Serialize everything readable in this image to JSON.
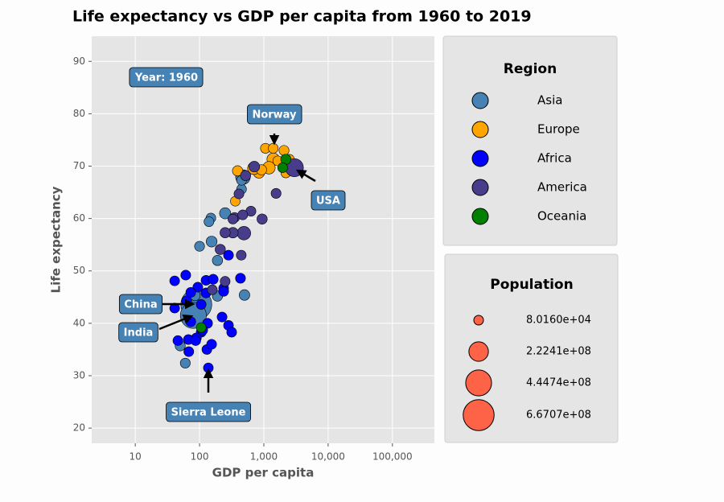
{
  "chart_data": {
    "type": "scatter",
    "title": "Life expectancy vs GDP per capita from 1960 to 2019",
    "x_label": "GDP per capita",
    "y_label": "Life expectancy",
    "x_scale": "log",
    "grid": true,
    "xlim": [
      2.1,
      450000
    ],
    "ylim": [
      17.1,
      94.8
    ],
    "xticks": [
      10,
      100,
      {
        "value": 1000,
        "label": "1,000"
      },
      {
        "value": 10000,
        "label": "10,000"
      },
      {
        "value": 100000,
        "label": "100,000"
      }
    ],
    "yticks": [
      20,
      30,
      40,
      50,
      60,
      70,
      80,
      90
    ],
    "year_label": "Year: 1960",
    "annotations": [
      "Norway",
      "USA",
      "China",
      "India",
      "Sierra Leone"
    ],
    "legend_title": "Region",
    "series": [
      {
        "name": "Asia",
        "color": "#4682b4",
        "x": [
          89,
          80,
          473,
          100,
          154,
          250,
          450,
          450,
          500,
          190,
          190,
          60,
          50,
          150,
          85,
          140
        ],
        "values": [
          43.6,
          41.5,
          67.9,
          54.7,
          55.6,
          61.0,
          65.6,
          67.3,
          45.4,
          52.0,
          45.2,
          32.4,
          35.7,
          60.1,
          45.3,
          59.4
        ],
        "sizes": [
          667070000,
          450000000,
          93000000,
          5000000,
          20000000,
          25000000,
          2000000,
          3000000,
          15000000,
          10000000,
          10000000,
          5000000,
          8000000,
          2000000,
          10000000,
          3000000
        ]
      },
      {
        "name": "Europe",
        "color": "#ffa500",
        "x": [
          1060,
          1400,
          2060,
          1400,
          840,
          700,
          390,
          360,
          1200,
          2200,
          2500,
          920,
          1650
        ],
        "values": [
          73.4,
          73.4,
          73.0,
          71.3,
          68.8,
          69.6,
          69.1,
          63.3,
          69.7,
          68.7,
          71.3,
          69.3,
          71.0
        ],
        "sizes": [
          5000000,
          4000000,
          5000000,
          50000000,
          30000000,
          50000000,
          10000000,
          2000000,
          50000000,
          2000000,
          3000000,
          10000000,
          3000000
        ]
      },
      {
        "name": "Africa",
        "color": "#0000ff",
        "x": [
          137,
          41,
          61,
          41,
          63,
          94,
          126,
          163,
          126,
          237,
          237,
          282,
          106,
          73,
          133,
          224,
          282,
          316,
          106,
          89,
          67,
          46,
          68,
          130,
          154,
          433,
          112,
          87,
          73
        ],
        "values": [
          31.5,
          48.1,
          49.2,
          42.9,
          44.3,
          46.9,
          48.2,
          48.4,
          45.8,
          46.7,
          46.1,
          53.0,
          43.6,
          40.3,
          40.0,
          41.2,
          39.6,
          38.3,
          38.3,
          37.2,
          36.9,
          36.7,
          34.6,
          35.0,
          36.0,
          48.6,
          38.7,
          36.7,
          45.9
        ],
        "sizes": [
          2300000,
          3000000,
          4000000,
          3000000,
          5000000,
          4000000,
          3000000,
          5000000,
          4000000,
          3000000,
          5000000,
          4000000,
          3000000,
          4000000,
          5000000,
          4000000,
          3000000,
          3000000,
          4000000,
          5000000,
          3000000,
          3000000,
          4000000,
          3000000,
          4000000,
          5000000,
          3000000,
          4000000,
          3000000
        ]
      },
      {
        "name": "America",
        "color": "#483d8b",
        "x": [
          2985,
          1550,
          940,
          630,
          710,
          520,
          490,
          330,
          250,
          210,
          350,
          470,
          410,
          445,
          250,
          158,
          330
        ],
        "values": [
          69.7,
          64.8,
          59.9,
          61.4,
          69.9,
          68.2,
          57.2,
          57.3,
          57.3,
          54.1,
          60.2,
          60.7,
          64.7,
          53.0,
          48.0,
          46.4,
          59.9
        ],
        "sizes": [
          180000000,
          5000000,
          10000000,
          5000000,
          18000000,
          10000000,
          70000000,
          15000000,
          10000000,
          10000000,
          5000000,
          4000000,
          3000000,
          3000000,
          4000000,
          3000000,
          3000000
        ]
      },
      {
        "name": "Oceania",
        "color": "#008000",
        "x": [
          2200,
          1960,
          106
        ],
        "values": [
          71.3,
          69.7,
          39.2
        ],
        "sizes": [
          10000000,
          2400000,
          2000000
        ]
      }
    ],
    "size_legend": {
      "title": "Population",
      "values": [
        {
          "value": 80160,
          "label": "8.0160e+04"
        },
        {
          "value": 222410000,
          "label": "2.2241e+08"
        },
        {
          "value": 444740000,
          "label": "4.4474e+08"
        },
        {
          "value": 667070000,
          "label": "6.6707e+08"
        }
      ]
    }
  }
}
